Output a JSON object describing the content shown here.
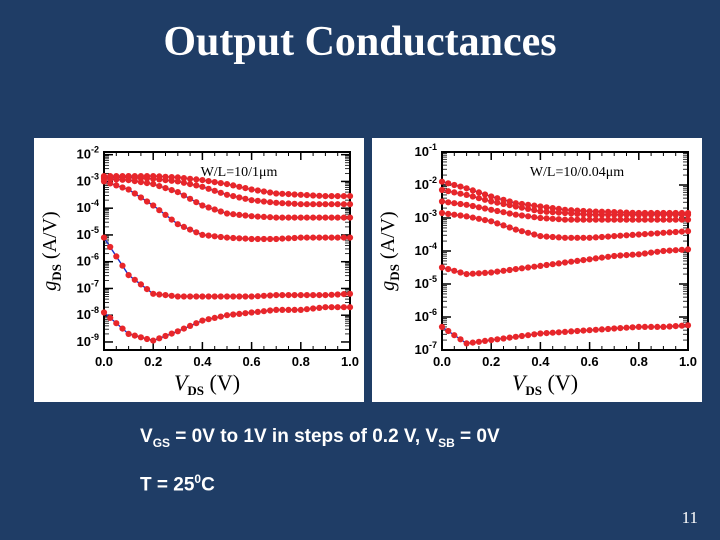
{
  "slide": {
    "title": "Output Conductances",
    "caption_vgs": {
      "v": "V",
      "gs_sub": "GS",
      "mid": " = 0V to 1V in steps of 0.2 V, V",
      "sb_sub": "SB",
      "end": " = 0V"
    },
    "caption_t": {
      "pre": "T = 25",
      "sup": "0",
      "post": "C"
    },
    "page_number": "11"
  },
  "colors": {
    "background": "#1f3d66",
    "marker": "#e8262a",
    "model_line": "#1a2ccc",
    "text": "#ffffff"
  },
  "chart_data": [
    {
      "type": "scatter",
      "annotation": "W/L=10/1μm",
      "xlabel": {
        "main": "V",
        "sub": "DS",
        "unit": " (V)"
      },
      "ylabel": {
        "main": "g",
        "sub": "DS",
        "unit": " (A/V)"
      },
      "xlim": [
        0,
        1
      ],
      "ylim_log10": [
        -9.3,
        -1.9
      ],
      "x_ticks": [
        "0.0",
        "0.2",
        "0.4",
        "0.6",
        "0.8",
        "1.0"
      ],
      "y_ticks": [
        {
          "base": "10",
          "exp": "-2"
        },
        {
          "base": "10",
          "exp": "-3"
        },
        {
          "base": "10",
          "exp": "-4"
        },
        {
          "base": "10",
          "exp": "-5"
        },
        {
          "base": "10",
          "exp": "-6"
        },
        {
          "base": "10",
          "exp": "-7"
        },
        {
          "base": "10",
          "exp": "-8"
        },
        {
          "base": "10",
          "exp": "-9"
        }
      ],
      "x": [
        0.0,
        0.1,
        0.2,
        0.3,
        0.4,
        0.5,
        0.6,
        0.7,
        0.8,
        0.9,
        1.0
      ],
      "series": [
        {
          "log10_values": [
            -7.9,
            -8.7,
            -8.95,
            -8.6,
            -8.2,
            -8.0,
            -7.9,
            -7.8,
            -7.8,
            -7.7,
            -7.7
          ]
        },
        {
          "log10_values": [
            -5.1,
            -6.5,
            -7.2,
            -7.3,
            -7.3,
            -7.3,
            -7.3,
            -7.25,
            -7.25,
            -7.25,
            -7.2
          ]
        },
        {
          "log10_values": [
            -3.0,
            -3.3,
            -3.9,
            -4.6,
            -5.0,
            -5.1,
            -5.15,
            -5.15,
            -5.1,
            -5.1,
            -5.1
          ]
        },
        {
          "log10_values": [
            -2.9,
            -2.95,
            -3.1,
            -3.4,
            -3.9,
            -4.2,
            -4.3,
            -4.35,
            -4.35,
            -4.35,
            -4.35
          ]
        },
        {
          "log10_values": [
            -2.85,
            -2.85,
            -2.9,
            -3.0,
            -3.2,
            -3.5,
            -3.7,
            -3.8,
            -3.85,
            -3.85,
            -3.85
          ]
        },
        {
          "log10_values": [
            -2.8,
            -2.8,
            -2.8,
            -2.85,
            -2.95,
            -3.1,
            -3.3,
            -3.45,
            -3.5,
            -3.55,
            -3.55
          ]
        }
      ]
    },
    {
      "type": "scatter",
      "annotation": "W/L=10/0.04μm",
      "xlabel": {
        "main": "V",
        "sub": "DS",
        "unit": " (V)"
      },
      "ylabel": {
        "main": "g",
        "sub": "DS",
        "unit": " (A/V)"
      },
      "xlim": [
        0,
        1
      ],
      "ylim_log10": [
        -7.0,
        -1.0
      ],
      "x_ticks": [
        "0.0",
        "0.2",
        "0.4",
        "0.6",
        "0.8",
        "1.0"
      ],
      "y_ticks": [
        {
          "base": "10",
          "exp": "-1"
        },
        {
          "base": "10",
          "exp": "-2"
        },
        {
          "base": "10",
          "exp": "-3"
        },
        {
          "base": "10",
          "exp": "-4"
        },
        {
          "base": "10",
          "exp": "-5"
        },
        {
          "base": "10",
          "exp": "-6"
        },
        {
          "base": "10",
          "exp": "-7"
        }
      ],
      "x": [
        0.0,
        0.1,
        0.2,
        0.3,
        0.4,
        0.5,
        0.6,
        0.7,
        0.8,
        0.9,
        1.0
      ],
      "series": [
        {
          "log10_values": [
            -6.3,
            -6.8,
            -6.7,
            -6.6,
            -6.5,
            -6.45,
            -6.4,
            -6.35,
            -6.3,
            -6.3,
            -6.25
          ]
        },
        {
          "log10_values": [
            -4.5,
            -4.7,
            -4.65,
            -4.55,
            -4.45,
            -4.35,
            -4.25,
            -4.15,
            -4.1,
            -4.0,
            -3.95
          ]
        },
        {
          "log10_values": [
            -2.85,
            -2.95,
            -3.1,
            -3.35,
            -3.55,
            -3.6,
            -3.6,
            -3.55,
            -3.5,
            -3.45,
            -3.4
          ]
        },
        {
          "log10_values": [
            -2.5,
            -2.6,
            -2.75,
            -2.9,
            -3.0,
            -3.05,
            -3.05,
            -3.05,
            -3.05,
            -3.05,
            -3.05
          ]
        },
        {
          "log10_values": [
            -2.15,
            -2.3,
            -2.5,
            -2.65,
            -2.8,
            -2.85,
            -2.9,
            -2.9,
            -2.9,
            -2.9,
            -2.9
          ]
        },
        {
          "log10_values": [
            -1.9,
            -2.1,
            -2.35,
            -2.55,
            -2.65,
            -2.75,
            -2.8,
            -2.82,
            -2.85,
            -2.85,
            -2.85
          ]
        }
      ]
    }
  ]
}
